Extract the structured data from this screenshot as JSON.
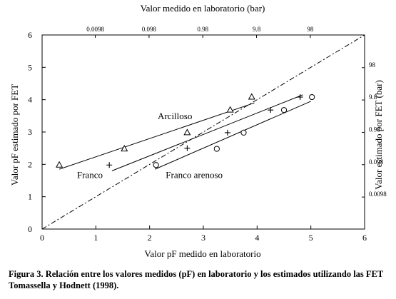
{
  "chart_data": {
    "type": "scatter",
    "xlabel": "Valor pF medido en laboratorio",
    "ylabel": "Valor pF estimado por FET",
    "x2label": "Valor medido en laboratorio (bar)",
    "y2label": "Valor estimado por FET (bar)",
    "xlim": [
      0,
      6
    ],
    "ylim": [
      0,
      6
    ],
    "xticks": [
      "0",
      "1",
      "2",
      "3",
      "4",
      "5",
      "6"
    ],
    "yticks": [
      "0",
      "1",
      "2",
      "3",
      "4",
      "5",
      "6"
    ],
    "top_ticks": [
      {
        "pf": 0.99,
        "label": "0.0098"
      },
      {
        "pf": 1.99,
        "label": "0.098"
      },
      {
        "pf": 2.99,
        "label": "0.98"
      },
      {
        "pf": 3.99,
        "label": "9.8"
      },
      {
        "pf": 4.99,
        "label": "98"
      }
    ],
    "right_ticks": [
      {
        "pf": 0.99,
        "label": "0.0098"
      },
      {
        "pf": 1.99,
        "label": "0.098"
      },
      {
        "pf": 2.99,
        "label": "0.98"
      },
      {
        "pf": 3.99,
        "label": "9.8"
      },
      {
        "pf": 4.99,
        "label": "98"
      }
    ],
    "series": [
      {
        "name": "Arcilloso",
        "marker": "triangle",
        "x": [
          0.32,
          1.53,
          2.7,
          3.5,
          3.9
        ],
        "y": [
          1.98,
          2.48,
          2.98,
          3.68,
          4.08
        ],
        "fit": [
          [
            0.32,
            1.85
          ],
          [
            3.95,
            3.9
          ]
        ],
        "label_at": [
          2.15,
          3.4
        ]
      },
      {
        "name": "Franco",
        "marker": "plus",
        "x": [
          1.25,
          2.7,
          3.45,
          4.25,
          4.8
        ],
        "y": [
          1.98,
          2.5,
          2.98,
          3.68,
          4.08
        ],
        "fit": [
          [
            1.3,
            1.8
          ],
          [
            4.85,
            4.15
          ]
        ],
        "label_at": [
          0.65,
          1.58
        ]
      },
      {
        "name": "Franco arenoso",
        "marker": "circle",
        "x": [
          2.12,
          3.25,
          3.75,
          4.5,
          5.02
        ],
        "y": [
          1.98,
          2.48,
          2.98,
          3.68,
          4.08
        ],
        "fit": [
          [
            2.1,
            1.85
          ],
          [
            5.0,
            3.95
          ]
        ],
        "label_at": [
          2.3,
          1.58
        ]
      }
    ],
    "reference_line": {
      "style": "dash-dot",
      "from": [
        0,
        0
      ],
      "to": [
        6,
        6
      ]
    }
  },
  "caption": {
    "label": "Figura 3.",
    "text": "Relación entre los valores medidos (pF) en laboratorio y los estimados utilizando las FET Tomassella y Hodnett (1998)."
  }
}
